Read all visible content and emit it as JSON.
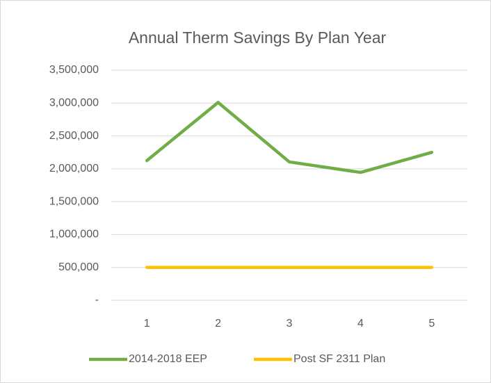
{
  "chart_data": {
    "type": "line",
    "title": "Annual Therm Savings By Plan Year",
    "categories": [
      "1",
      "2",
      "3",
      "4",
      "5"
    ],
    "series": [
      {
        "name": "2014-2018 EEP",
        "color": "#70ad47",
        "values": [
          2125000,
          3010000,
          2105000,
          1945000,
          2250000
        ]
      },
      {
        "name": "Post SF 2311 Plan",
        "color": "#ffc000",
        "values": [
          500000,
          500000,
          500000,
          500000,
          500000
        ]
      }
    ],
    "ylim": [
      0,
      3500000
    ],
    "yticks": [
      {
        "value": 0,
        "label": "-"
      },
      {
        "value": 500000,
        "label": "500,000"
      },
      {
        "value": 1000000,
        "label": "1,000,000"
      },
      {
        "value": 1500000,
        "label": "1,500,000"
      },
      {
        "value": 2000000,
        "label": "2,000,000"
      },
      {
        "value": 2500000,
        "label": "2,500,000"
      },
      {
        "value": 3000000,
        "label": "3,000,000"
      },
      {
        "value": 3500000,
        "label": "3,500,000"
      }
    ],
    "grid": true,
    "legend": "bottom"
  }
}
